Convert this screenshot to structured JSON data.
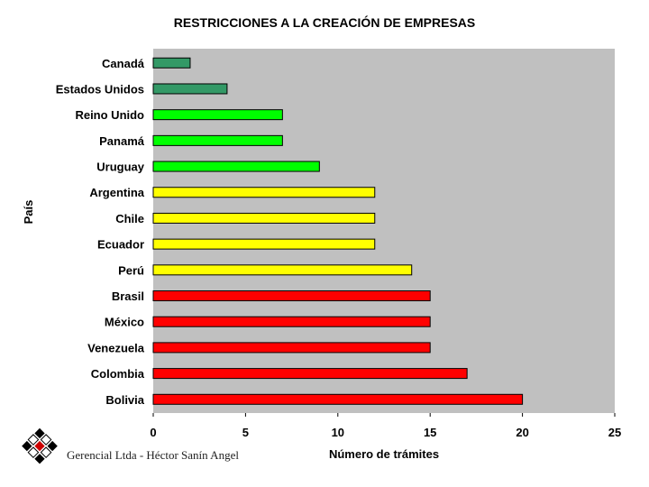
{
  "chart_data": {
    "type": "bar",
    "orientation": "horizontal",
    "title": "RESTRICCIONES A LA CREACIÓN DE EMPRESAS",
    "ylabel": "País",
    "xlabel": "Número de trámites",
    "xlim": [
      0,
      25
    ],
    "xticks": [
      0,
      5,
      10,
      15,
      20,
      25
    ],
    "grid": false,
    "categories": [
      "Canadá",
      "Estados Unidos",
      "Reino Unido",
      "Panamá",
      "Uruguay",
      "Argentina",
      "Chile",
      "Ecuador",
      "Perú",
      "Brasil",
      "México",
      "Venezuela",
      "Colombia",
      "Bolivia"
    ],
    "values": [
      2,
      4,
      7,
      7,
      9,
      12,
      12,
      12,
      14,
      15,
      15,
      15,
      17,
      20
    ],
    "bar_colors": [
      "#339966",
      "#339966",
      "#00ff00",
      "#00ff00",
      "#00ff00",
      "#ffff00",
      "#ffff00",
      "#ffff00",
      "#ffff00",
      "#ff0000",
      "#ff0000",
      "#ff0000",
      "#ff0000",
      "#ff0000"
    ],
    "plot_background": "#c0c0c0"
  },
  "footer": "Gerencial Ltda - Héctor Sanín Angel"
}
